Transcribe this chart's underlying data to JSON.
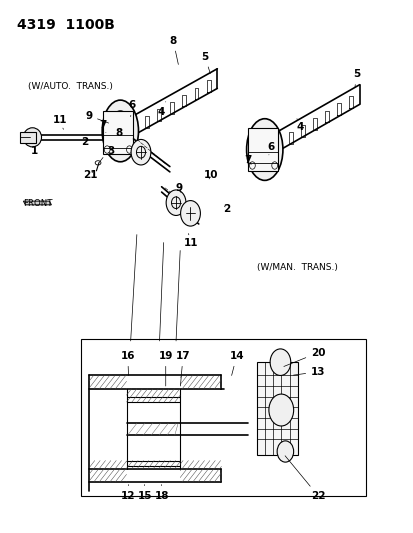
{
  "title": "4319  1100B",
  "bg_color": "#ffffff",
  "line_color": "#000000",
  "label_color": "#000000",
  "fig_width": 4.14,
  "fig_height": 5.33,
  "dpi": 100,
  "w_auto_text": "(W/AUTO.  TRANS.)",
  "w_man_text": "(W/MAN.  TRANS.)",
  "front_text": "FRONT"
}
